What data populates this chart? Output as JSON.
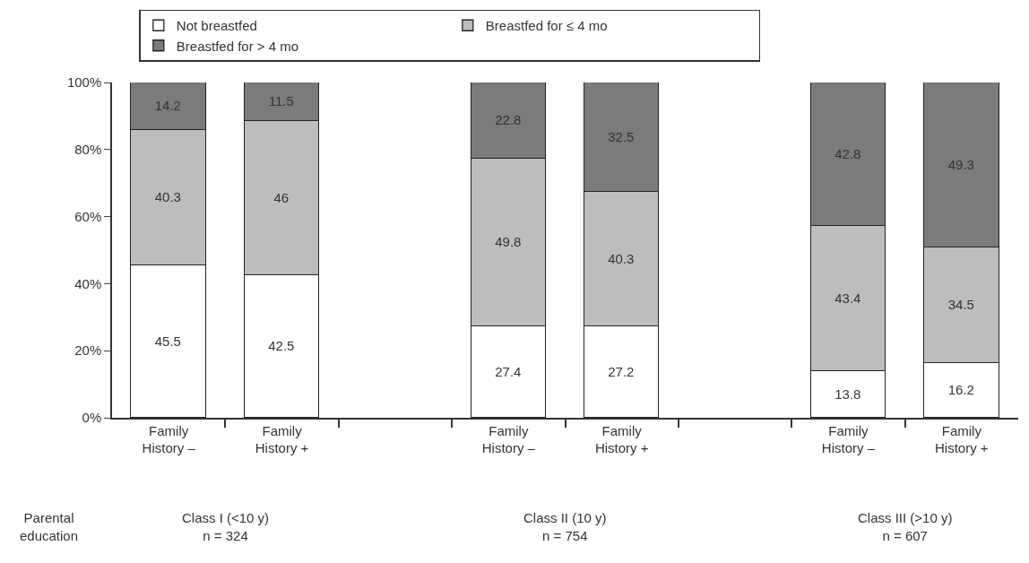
{
  "chart_data": {
    "type": "bar",
    "stacked": true,
    "categories": [
      "Family\nHistory –",
      "Family\nHistory +",
      null,
      "Family\nHistory –",
      "Family\nHistory +",
      null,
      "Family\nHistory –",
      "Family\nHistory +"
    ],
    "series": [
      {
        "name": "Not breastfed",
        "color": "#ffffff",
        "values": [
          45.5,
          42.5,
          null,
          27.4,
          27.2,
          null,
          13.8,
          16.2
        ]
      },
      {
        "name": "Breastfed for ≤ 4 mo",
        "color": "#bdbdbf",
        "values": [
          40.3,
          46,
          null,
          49.8,
          40.3,
          null,
          43.4,
          34.5
        ]
      },
      {
        "name": "Breastfed for > 4 mo",
        "color": "#7b7b7d",
        "values": [
          14.2,
          11.5,
          null,
          22.8,
          32.5,
          null,
          42.8,
          49.3
        ]
      }
    ],
    "ylim": [
      0,
      100
    ],
    "yticks": [
      {
        "value": 0,
        "label": "0%"
      },
      {
        "value": 20,
        "label": "20%"
      },
      {
        "value": 40,
        "label": "40%"
      },
      {
        "value": 60,
        "label": "60%"
      },
      {
        "value": 80,
        "label": "80%"
      },
      {
        "value": 100,
        "label": "100%"
      }
    ],
    "data_labels": true,
    "legend": "top",
    "annotations": [
      "Parental\neducation",
      "Class I (<10 y)\nn = 324",
      "Class II (10 y)\nn = 754",
      "Class III (>10 y)\nn = 607"
    ]
  }
}
